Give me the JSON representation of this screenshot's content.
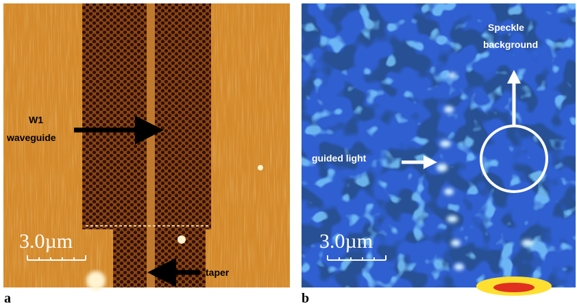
{
  "panels": [
    {
      "label": "a",
      "annotation_lines": [
        "W1",
        "waveguide"
      ],
      "taper_label": "taper",
      "scale_bar": "3.0µm"
    },
    {
      "label": "b",
      "annotation_lines": [
        "Speckle",
        "background"
      ],
      "guided_label": "guided light",
      "scale_bar": "3.0µm"
    }
  ]
}
